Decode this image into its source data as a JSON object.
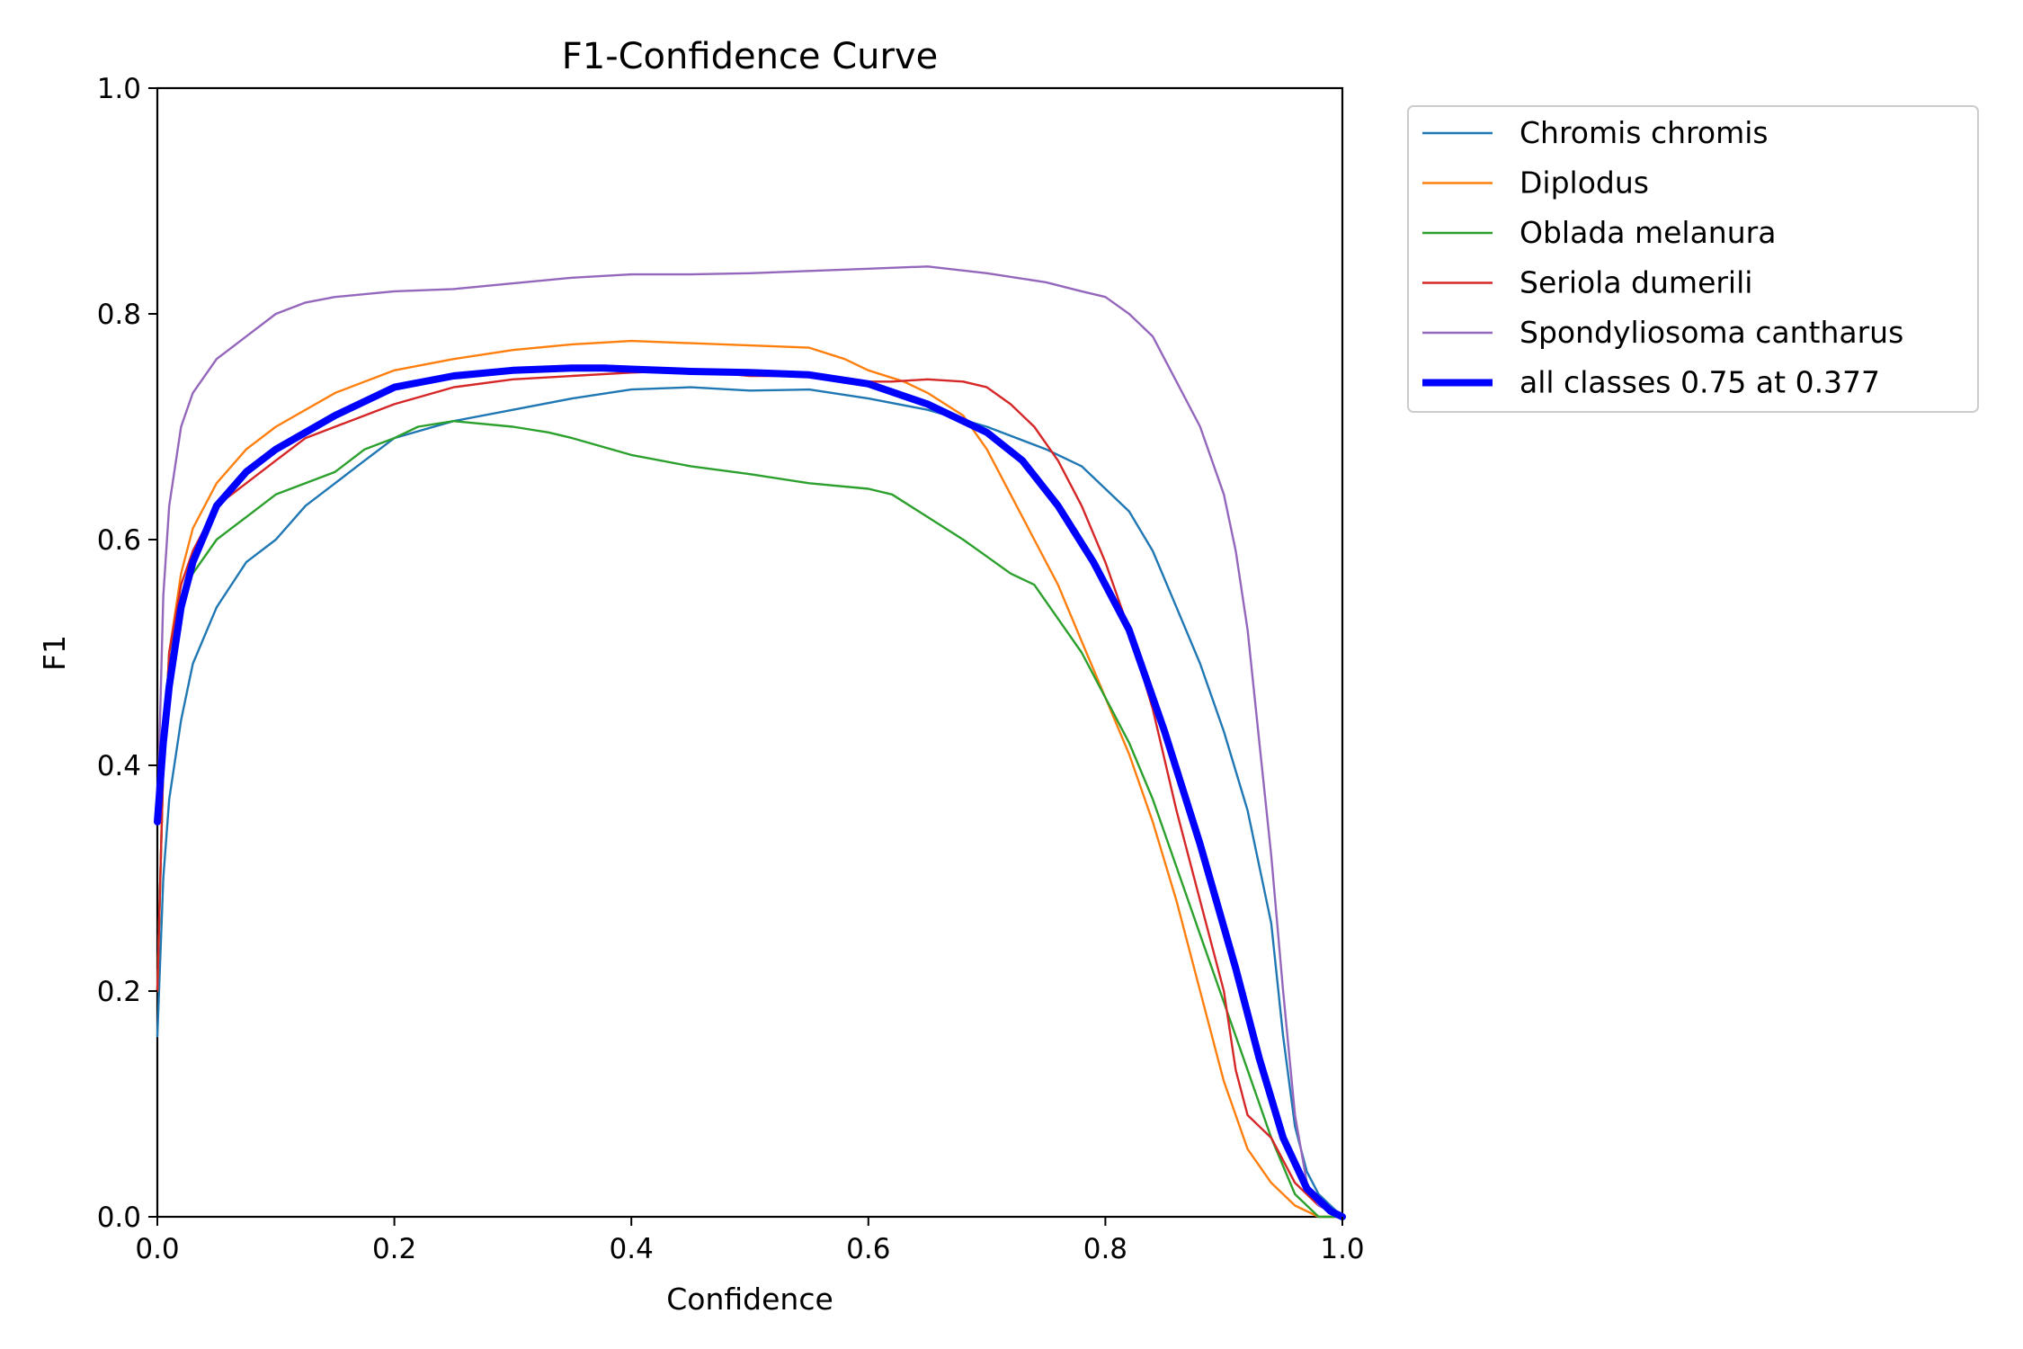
{
  "chart_data": {
    "type": "line",
    "title": "F1-Confidence Curve",
    "xlabel": "Confidence",
    "ylabel": "F1",
    "xlim": [
      0,
      1
    ],
    "ylim": [
      0,
      1
    ],
    "x_ticks": [
      "0.0",
      "0.2",
      "0.4",
      "0.6",
      "0.8",
      "1.0"
    ],
    "y_ticks": [
      "0.0",
      "0.2",
      "0.4",
      "0.6",
      "0.8",
      "1.0"
    ],
    "grid": false,
    "legend_position": "outside-top-right",
    "series": [
      {
        "name": "Chromis chromis",
        "color": "#1f77b4",
        "line_width": "thin",
        "points": [
          [
            0,
            0.16
          ],
          [
            0.005,
            0.3
          ],
          [
            0.01,
            0.37
          ],
          [
            0.02,
            0.44
          ],
          [
            0.03,
            0.49
          ],
          [
            0.05,
            0.54
          ],
          [
            0.075,
            0.58
          ],
          [
            0.1,
            0.6
          ],
          [
            0.125,
            0.63
          ],
          [
            0.15,
            0.65
          ],
          [
            0.175,
            0.67
          ],
          [
            0.2,
            0.69
          ],
          [
            0.25,
            0.705
          ],
          [
            0.3,
            0.715
          ],
          [
            0.35,
            0.725
          ],
          [
            0.4,
            0.733
          ],
          [
            0.45,
            0.735
          ],
          [
            0.5,
            0.732
          ],
          [
            0.55,
            0.733
          ],
          [
            0.6,
            0.725
          ],
          [
            0.65,
            0.715
          ],
          [
            0.7,
            0.7
          ],
          [
            0.75,
            0.68
          ],
          [
            0.78,
            0.665
          ],
          [
            0.8,
            0.645
          ],
          [
            0.82,
            0.625
          ],
          [
            0.84,
            0.59
          ],
          [
            0.86,
            0.54
          ],
          [
            0.88,
            0.49
          ],
          [
            0.9,
            0.43
          ],
          [
            0.92,
            0.36
          ],
          [
            0.94,
            0.26
          ],
          [
            0.95,
            0.16
          ],
          [
            0.96,
            0.08
          ],
          [
            0.97,
            0.04
          ],
          [
            0.98,
            0.02
          ],
          [
            1.0,
            0.0
          ]
        ]
      },
      {
        "name": "Diplodus",
        "color": "#ff7f0e",
        "line_width": "thin",
        "points": [
          [
            0,
            0.2
          ],
          [
            0.005,
            0.4
          ],
          [
            0.01,
            0.5
          ],
          [
            0.02,
            0.57
          ],
          [
            0.03,
            0.61
          ],
          [
            0.05,
            0.65
          ],
          [
            0.075,
            0.68
          ],
          [
            0.1,
            0.7
          ],
          [
            0.15,
            0.73
          ],
          [
            0.2,
            0.75
          ],
          [
            0.25,
            0.76
          ],
          [
            0.3,
            0.768
          ],
          [
            0.35,
            0.773
          ],
          [
            0.4,
            0.776
          ],
          [
            0.45,
            0.774
          ],
          [
            0.5,
            0.772
          ],
          [
            0.55,
            0.77
          ],
          [
            0.58,
            0.76
          ],
          [
            0.6,
            0.75
          ],
          [
            0.63,
            0.74
          ],
          [
            0.65,
            0.73
          ],
          [
            0.68,
            0.71
          ],
          [
            0.7,
            0.68
          ],
          [
            0.72,
            0.64
          ],
          [
            0.74,
            0.6
          ],
          [
            0.76,
            0.56
          ],
          [
            0.78,
            0.51
          ],
          [
            0.8,
            0.46
          ],
          [
            0.82,
            0.41
          ],
          [
            0.84,
            0.35
          ],
          [
            0.86,
            0.28
          ],
          [
            0.88,
            0.2
          ],
          [
            0.9,
            0.12
          ],
          [
            0.92,
            0.06
          ],
          [
            0.94,
            0.03
          ],
          [
            0.96,
            0.01
          ],
          [
            0.98,
            0.0
          ],
          [
            1.0,
            0.0
          ]
        ]
      },
      {
        "name": "Oblada melanura",
        "color": "#2ca02c",
        "line_width": "thin",
        "points": [
          [
            0,
            0.2
          ],
          [
            0.005,
            0.4
          ],
          [
            0.01,
            0.5
          ],
          [
            0.02,
            0.55
          ],
          [
            0.03,
            0.57
          ],
          [
            0.05,
            0.6
          ],
          [
            0.075,
            0.62
          ],
          [
            0.1,
            0.64
          ],
          [
            0.125,
            0.65
          ],
          [
            0.15,
            0.66
          ],
          [
            0.175,
            0.68
          ],
          [
            0.2,
            0.69
          ],
          [
            0.22,
            0.7
          ],
          [
            0.25,
            0.705
          ],
          [
            0.3,
            0.7
          ],
          [
            0.33,
            0.695
          ],
          [
            0.35,
            0.69
          ],
          [
            0.4,
            0.675
          ],
          [
            0.45,
            0.665
          ],
          [
            0.5,
            0.658
          ],
          [
            0.55,
            0.65
          ],
          [
            0.6,
            0.645
          ],
          [
            0.62,
            0.64
          ],
          [
            0.65,
            0.62
          ],
          [
            0.68,
            0.6
          ],
          [
            0.7,
            0.585
          ],
          [
            0.72,
            0.57
          ],
          [
            0.74,
            0.56
          ],
          [
            0.76,
            0.53
          ],
          [
            0.78,
            0.5
          ],
          [
            0.8,
            0.46
          ],
          [
            0.82,
            0.42
          ],
          [
            0.84,
            0.37
          ],
          [
            0.86,
            0.31
          ],
          [
            0.88,
            0.25
          ],
          [
            0.9,
            0.19
          ],
          [
            0.92,
            0.13
          ],
          [
            0.94,
            0.07
          ],
          [
            0.96,
            0.02
          ],
          [
            0.98,
            0.0
          ],
          [
            1.0,
            0.0
          ]
        ]
      },
      {
        "name": "Seriola dumerili",
        "color": "#d62728",
        "line_width": "thin",
        "points": [
          [
            0,
            0.2
          ],
          [
            0.005,
            0.4
          ],
          [
            0.01,
            0.5
          ],
          [
            0.02,
            0.56
          ],
          [
            0.03,
            0.59
          ],
          [
            0.05,
            0.63
          ],
          [
            0.075,
            0.65
          ],
          [
            0.1,
            0.67
          ],
          [
            0.125,
            0.69
          ],
          [
            0.15,
            0.7
          ],
          [
            0.175,
            0.71
          ],
          [
            0.2,
            0.72
          ],
          [
            0.25,
            0.735
          ],
          [
            0.3,
            0.742
          ],
          [
            0.35,
            0.745
          ],
          [
            0.4,
            0.748
          ],
          [
            0.45,
            0.75
          ],
          [
            0.5,
            0.745
          ],
          [
            0.55,
            0.745
          ],
          [
            0.6,
            0.74
          ],
          [
            0.62,
            0.74
          ],
          [
            0.65,
            0.742
          ],
          [
            0.68,
            0.74
          ],
          [
            0.7,
            0.735
          ],
          [
            0.72,
            0.72
          ],
          [
            0.74,
            0.7
          ],
          [
            0.76,
            0.67
          ],
          [
            0.78,
            0.63
          ],
          [
            0.8,
            0.58
          ],
          [
            0.82,
            0.52
          ],
          [
            0.84,
            0.45
          ],
          [
            0.86,
            0.36
          ],
          [
            0.88,
            0.28
          ],
          [
            0.9,
            0.2
          ],
          [
            0.91,
            0.13
          ],
          [
            0.92,
            0.09
          ],
          [
            0.94,
            0.07
          ],
          [
            0.96,
            0.03
          ],
          [
            0.98,
            0.01
          ],
          [
            1.0,
            0.0
          ]
        ]
      },
      {
        "name": "Spondyliosoma cantharus",
        "color": "#9467bd",
        "line_width": "thin",
        "points": [
          [
            0,
            0.35
          ],
          [
            0.005,
            0.55
          ],
          [
            0.01,
            0.63
          ],
          [
            0.02,
            0.7
          ],
          [
            0.03,
            0.73
          ],
          [
            0.05,
            0.76
          ],
          [
            0.075,
            0.78
          ],
          [
            0.1,
            0.8
          ],
          [
            0.125,
            0.81
          ],
          [
            0.15,
            0.815
          ],
          [
            0.2,
            0.82
          ],
          [
            0.25,
            0.822
          ],
          [
            0.3,
            0.827
          ],
          [
            0.35,
            0.832
          ],
          [
            0.4,
            0.835
          ],
          [
            0.45,
            0.835
          ],
          [
            0.5,
            0.836
          ],
          [
            0.55,
            0.838
          ],
          [
            0.6,
            0.84
          ],
          [
            0.65,
            0.842
          ],
          [
            0.7,
            0.836
          ],
          [
            0.75,
            0.828
          ],
          [
            0.78,
            0.82
          ],
          [
            0.8,
            0.815
          ],
          [
            0.82,
            0.8
          ],
          [
            0.84,
            0.78
          ],
          [
            0.86,
            0.74
          ],
          [
            0.88,
            0.7
          ],
          [
            0.9,
            0.64
          ],
          [
            0.91,
            0.59
          ],
          [
            0.92,
            0.52
          ],
          [
            0.93,
            0.42
          ],
          [
            0.94,
            0.32
          ],
          [
            0.95,
            0.2
          ],
          [
            0.96,
            0.09
          ],
          [
            0.97,
            0.03
          ],
          [
            0.98,
            0.01
          ],
          [
            1.0,
            0.0
          ]
        ]
      },
      {
        "name": "all classes 0.75 at 0.377",
        "color": "#0000ff",
        "line_width": "thick",
        "points": [
          [
            0,
            0.35
          ],
          [
            0.005,
            0.42
          ],
          [
            0.01,
            0.47
          ],
          [
            0.02,
            0.54
          ],
          [
            0.03,
            0.58
          ],
          [
            0.05,
            0.63
          ],
          [
            0.075,
            0.66
          ],
          [
            0.1,
            0.68
          ],
          [
            0.15,
            0.71
          ],
          [
            0.2,
            0.735
          ],
          [
            0.25,
            0.745
          ],
          [
            0.3,
            0.75
          ],
          [
            0.35,
            0.752
          ],
          [
            0.377,
            0.752
          ],
          [
            0.4,
            0.751
          ],
          [
            0.45,
            0.749
          ],
          [
            0.5,
            0.748
          ],
          [
            0.55,
            0.746
          ],
          [
            0.6,
            0.738
          ],
          [
            0.65,
            0.72
          ],
          [
            0.7,
            0.695
          ],
          [
            0.73,
            0.67
          ],
          [
            0.76,
            0.63
          ],
          [
            0.79,
            0.58
          ],
          [
            0.82,
            0.52
          ],
          [
            0.85,
            0.43
          ],
          [
            0.88,
            0.33
          ],
          [
            0.91,
            0.22
          ],
          [
            0.93,
            0.14
          ],
          [
            0.95,
            0.07
          ],
          [
            0.97,
            0.025
          ],
          [
            0.99,
            0.005
          ],
          [
            1.0,
            0.0
          ]
        ]
      }
    ]
  }
}
